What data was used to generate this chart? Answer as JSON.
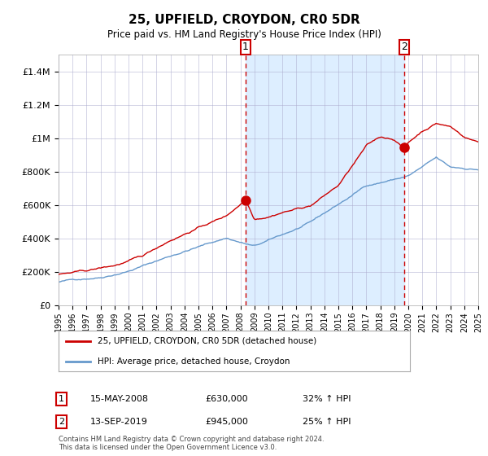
{
  "title": "25, UPFIELD, CROYDON, CR0 5DR",
  "subtitle": "Price paid vs. HM Land Registry's House Price Index (HPI)",
  "legend_line1": "25, UPFIELD, CROYDON, CR0 5DR (detached house)",
  "legend_line2": "HPI: Average price, detached house, Croydon",
  "red_color": "#cc0000",
  "blue_color": "#6699cc",
  "shading_color": "#ddeeff",
  "grid_color": "#aaaacc",
  "annotation_color": "#cc0000",
  "bg_color": "#ffffff",
  "point1_year": 2008.37,
  "point1_value": 630000,
  "point1_label": "1",
  "point1_date": "15-MAY-2008",
  "point1_amount": "£630,000",
  "point1_hpi": "32% ↑ HPI",
  "point2_year": 2019.71,
  "point2_value": 945000,
  "point2_label": "2",
  "point2_date": "13-SEP-2019",
  "point2_amount": "£945,000",
  "point2_hpi": "25% ↑ HPI",
  "footer": "Contains HM Land Registry data © Crown copyright and database right 2024.\nThis data is licensed under the Open Government Licence v3.0.",
  "ylim": [
    0,
    1500000
  ],
  "yticks": [
    0,
    200000,
    400000,
    600000,
    800000,
    1000000,
    1200000,
    1400000
  ],
  "xstart": 1995,
  "xend": 2025
}
